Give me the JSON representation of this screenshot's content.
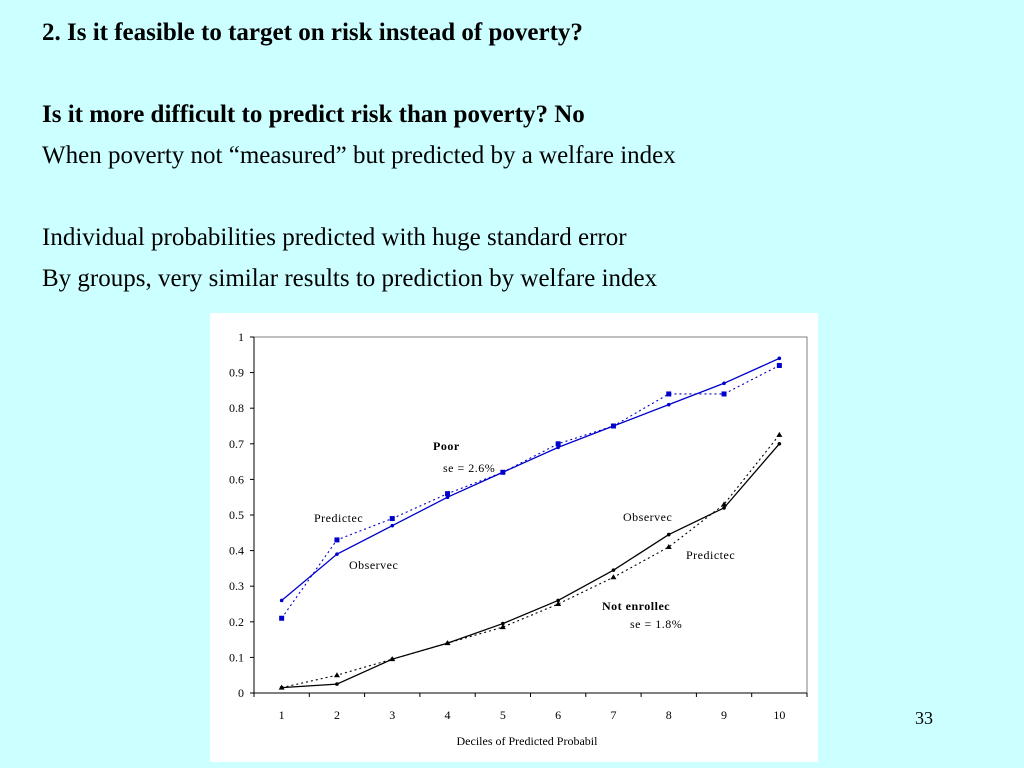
{
  "slide": {
    "lines": [
      "2. Is it feasible to target on risk instead of poverty?",
      "Is it more difficult to predict risk than poverty?  No",
      "When poverty not “measured” but predicted by a welfare index",
      "Individual  probabilities predicted with huge standard error",
      "By groups, very similar results to prediction by welfare index"
    ],
    "page_number": "33"
  },
  "colors": {
    "background": "#ccffff",
    "poor_series": "#0000cc",
    "enrolled_series": "#000000"
  },
  "chart_data": {
    "type": "line",
    "xlabel": "Deciles of Predicted Probabil",
    "ylabel": "",
    "x": [
      1,
      2,
      3,
      4,
      5,
      6,
      7,
      8,
      9,
      10
    ],
    "xlim": [
      0.5,
      10.5
    ],
    "ylim": [
      0,
      1
    ],
    "yticks": [
      "0",
      "0.1",
      "0.2",
      "0.3",
      "0.4",
      "0.5",
      "0.6",
      "0.7",
      "0.8",
      "0.9",
      "1"
    ],
    "xticks": [
      "1",
      "2",
      "3",
      "4",
      "5",
      "6",
      "7",
      "8",
      "9",
      "10"
    ],
    "grid": false,
    "series": [
      {
        "name": "",
        "group": "Poor",
        "kind": "Observed",
        "style": "solid",
        "color": "#0000cc",
        "values": [
          0.26,
          0.39,
          0.47,
          0.55,
          0.62,
          0.69,
          0.75,
          0.81,
          0.87,
          0.94
        ]
      },
      {
        "name": "",
        "group": "Poor",
        "kind": "Predicted",
        "style": "dotted",
        "color": "#0000cc",
        "values": [
          0.21,
          0.43,
          0.49,
          0.56,
          0.62,
          0.7,
          0.75,
          0.84,
          0.84,
          0.92
        ]
      },
      {
        "name": "",
        "group": "Not enrolled",
        "kind": "Observed",
        "style": "solid",
        "color": "#000000",
        "values": [
          0.015,
          0.025,
          0.095,
          0.14,
          0.195,
          0.26,
          0.345,
          0.445,
          0.52,
          0.7
        ]
      },
      {
        "name": "",
        "group": "Not enrolled",
        "kind": "Predicted",
        "style": "dotted",
        "color": "#000000",
        "values": [
          0.015,
          0.05,
          0.095,
          0.14,
          0.185,
          0.25,
          0.325,
          0.41,
          0.53,
          0.725
        ]
      }
    ],
    "annotations": {
      "poor_label": "Poor",
      "poor_se": "se = 2.6%",
      "poor_predicted": "Predictec",
      "poor_observed": "Observec",
      "ne_observed": "Observec",
      "ne_predicted": "Predictec",
      "ne_label": "Not enrollec",
      "ne_se": "se = 1.8%"
    }
  }
}
